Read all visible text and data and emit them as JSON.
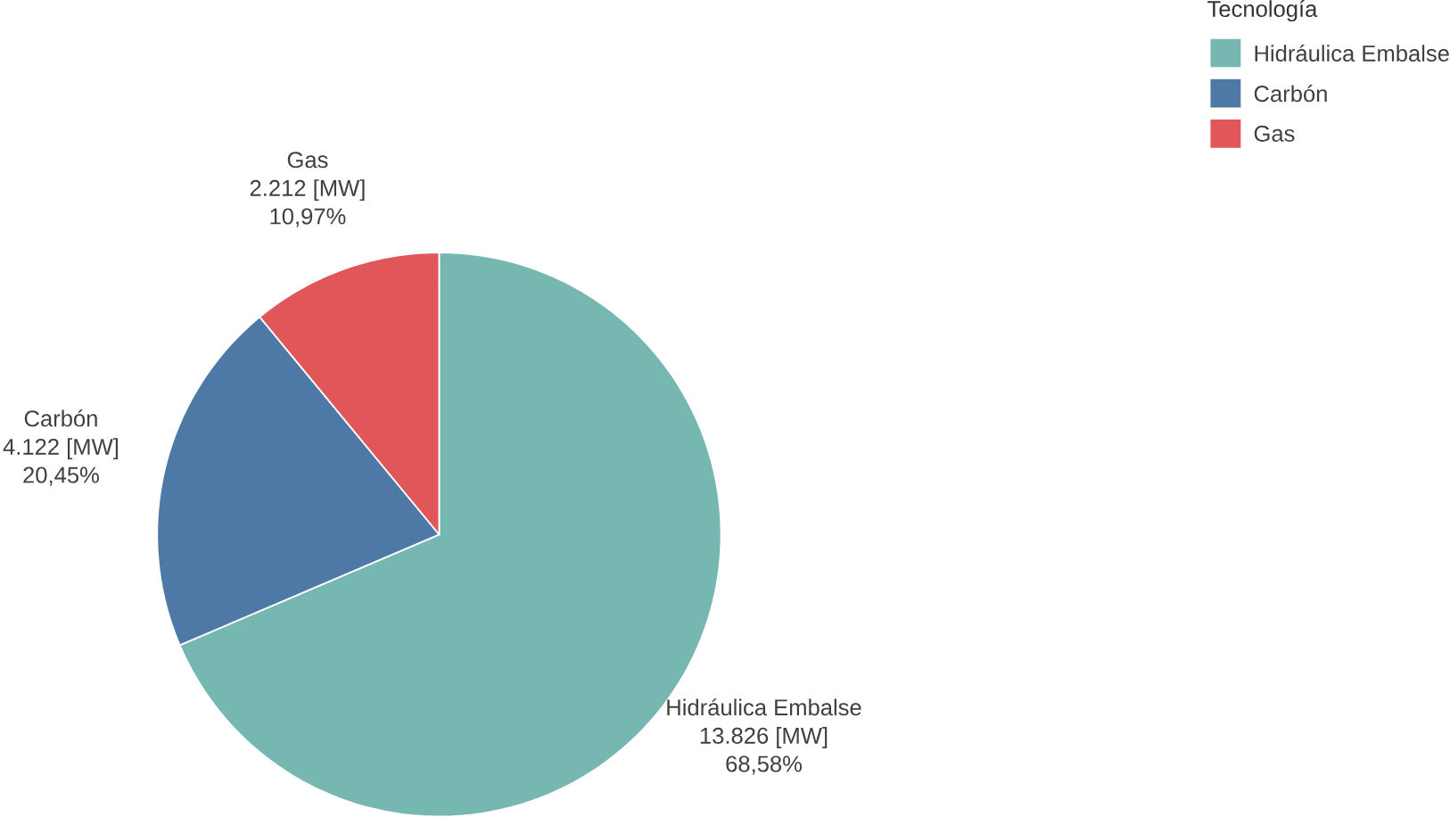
{
  "chart_data": {
    "type": "pie",
    "legend_title": "Tecnología",
    "legend": "top right",
    "categories": [
      "Hidráulica Embalse",
      "Carbón",
      "Gas"
    ],
    "values": [
      13826,
      4122,
      2212
    ],
    "colors": [
      "#76b7b2",
      "#4e79a7",
      "#e15759"
    ],
    "value_labels": [
      "13.826 [MW]",
      "4.122 [MW]",
      "2.212 [MW]"
    ],
    "annotations": [
      "68,58%",
      "20,45%",
      "10,97%"
    ]
  }
}
